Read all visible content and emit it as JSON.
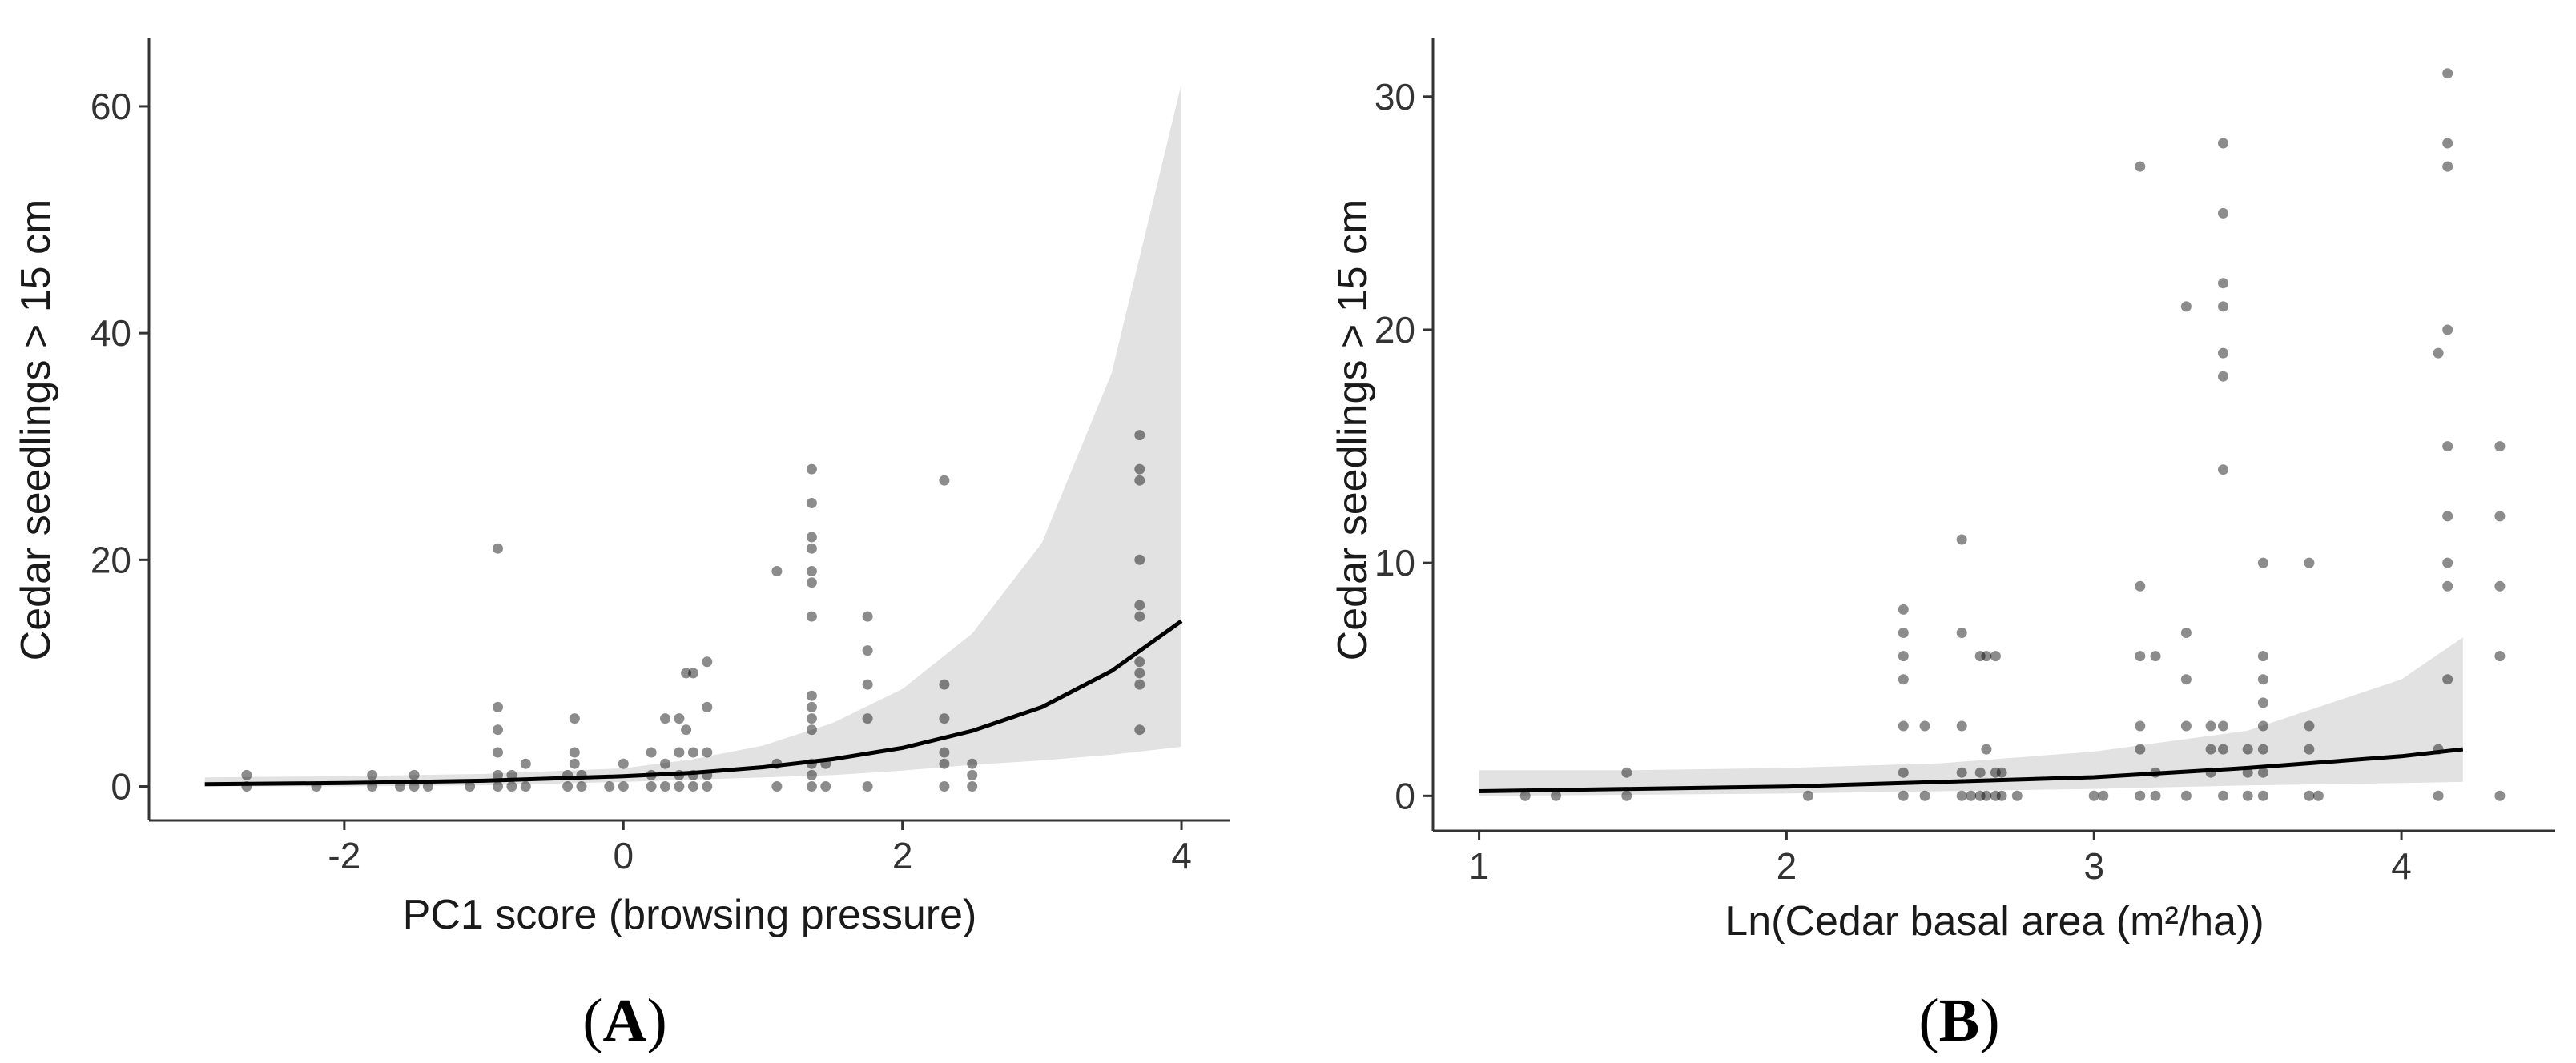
{
  "chart_data": [
    {
      "type": "scatter",
      "panel": "A",
      "panel_label": {
        "open": "(",
        "letter": "A",
        "close": ")"
      },
      "xlabel": "PC1 score (browsing pressure)",
      "ylabel": "Cedar seedlings > 15 cm",
      "xlim": [
        -3.4,
        4.35
      ],
      "ylim": [
        -3,
        66
      ],
      "xticks": [
        -2,
        0,
        2,
        4
      ],
      "yticks": [
        0,
        20,
        40,
        60
      ],
      "grid": false,
      "colors": {
        "points": "#000000",
        "ribbon": "#e2e2e2",
        "line": "#000000"
      },
      "fit": {
        "x": [
          -3.0,
          -2.0,
          -1.0,
          0.0,
          0.5,
          1.0,
          1.5,
          2.0,
          2.5,
          3.0,
          3.5,
          4.0
        ],
        "y": [
          0.2,
          0.3,
          0.5,
          0.9,
          1.2,
          1.7,
          2.4,
          3.4,
          4.9,
          7.0,
          10.2,
          14.6
        ],
        "lower": [
          0.0,
          0.0,
          0.1,
          0.4,
          0.6,
          0.8,
          1.0,
          1.4,
          1.9,
          2.3,
          2.8,
          3.5
        ],
        "upper": [
          0.8,
          0.9,
          1.1,
          1.6,
          2.4,
          3.6,
          5.6,
          8.6,
          13.5,
          21.5,
          36.5,
          62.0
        ]
      },
      "points": [
        [
          -2.7,
          1
        ],
        [
          -2.7,
          0
        ],
        [
          -2.2,
          0
        ],
        [
          -1.8,
          1
        ],
        [
          -1.8,
          0
        ],
        [
          -1.6,
          0
        ],
        [
          -1.5,
          1
        ],
        [
          -1.5,
          0
        ],
        [
          -1.4,
          0
        ],
        [
          -1.1,
          0
        ],
        [
          -0.9,
          21
        ],
        [
          -0.9,
          7
        ],
        [
          -0.9,
          5
        ],
        [
          -0.9,
          3
        ],
        [
          -0.9,
          1
        ],
        [
          -0.9,
          0
        ],
        [
          -0.8,
          1
        ],
        [
          -0.8,
          0
        ],
        [
          -0.7,
          2
        ],
        [
          -0.7,
          0
        ],
        [
          -0.4,
          1
        ],
        [
          -0.4,
          0
        ],
        [
          -0.35,
          6
        ],
        [
          -0.35,
          3
        ],
        [
          -0.35,
          2
        ],
        [
          -0.3,
          1
        ],
        [
          -0.3,
          0
        ],
        [
          -0.1,
          0
        ],
        [
          0.0,
          2
        ],
        [
          0.0,
          0
        ],
        [
          0.2,
          3
        ],
        [
          0.2,
          1
        ],
        [
          0.2,
          0
        ],
        [
          0.3,
          6
        ],
        [
          0.3,
          2
        ],
        [
          0.3,
          0
        ],
        [
          0.4,
          6
        ],
        [
          0.4,
          3
        ],
        [
          0.4,
          1
        ],
        [
          0.4,
          0
        ],
        [
          0.45,
          10
        ],
        [
          0.45,
          5
        ],
        [
          0.5,
          10
        ],
        [
          0.5,
          3
        ],
        [
          0.5,
          1
        ],
        [
          0.5,
          0
        ],
        [
          0.6,
          11
        ],
        [
          0.6,
          7
        ],
        [
          0.6,
          3
        ],
        [
          0.6,
          1
        ],
        [
          0.6,
          0
        ],
        [
          1.1,
          19
        ],
        [
          1.1,
          2
        ],
        [
          1.1,
          0
        ],
        [
          1.35,
          28
        ],
        [
          1.35,
          25
        ],
        [
          1.35,
          22
        ],
        [
          1.35,
          21
        ],
        [
          1.35,
          19
        ],
        [
          1.35,
          18
        ],
        [
          1.35,
          15
        ],
        [
          1.35,
          8
        ],
        [
          1.35,
          7
        ],
        [
          1.35,
          6
        ],
        [
          1.35,
          5
        ],
        [
          1.35,
          2
        ],
        [
          1.35,
          1
        ],
        [
          1.35,
          0
        ],
        [
          1.45,
          2
        ],
        [
          1.45,
          0
        ],
        [
          1.75,
          15
        ],
        [
          1.75,
          12
        ],
        [
          1.75,
          9
        ],
        [
          1.75,
          6
        ],
        [
          1.75,
          0
        ],
        [
          2.3,
          27
        ],
        [
          2.3,
          9
        ],
        [
          2.3,
          6
        ],
        [
          2.3,
          3
        ],
        [
          2.3,
          2
        ],
        [
          2.3,
          0
        ],
        [
          2.5,
          2
        ],
        [
          2.5,
          1
        ],
        [
          2.5,
          0
        ],
        [
          3.7,
          31
        ],
        [
          3.7,
          28
        ],
        [
          3.7,
          27
        ],
        [
          3.7,
          20
        ],
        [
          3.7,
          16
        ],
        [
          3.7,
          15
        ],
        [
          3.7,
          11
        ],
        [
          3.7,
          10
        ],
        [
          3.7,
          9
        ],
        [
          3.7,
          5
        ]
      ]
    },
    {
      "type": "scatter",
      "panel": "B",
      "panel_label": {
        "open": "(",
        "letter": "B",
        "close": ")"
      },
      "xlabel": "Ln(Cedar basal area (m²/ha))",
      "ylabel": "Cedar seedlings > 15 cm",
      "xlim": [
        0.85,
        4.5
      ],
      "ylim": [
        -1.5,
        32.5
      ],
      "xticks": [
        1,
        2,
        3,
        4
      ],
      "yticks": [
        0,
        10,
        20,
        30
      ],
      "grid": false,
      "colors": {
        "points": "#000000",
        "ribbon": "#e2e2e2",
        "line": "#000000"
      },
      "fit": {
        "x": [
          1.0,
          1.5,
          2.0,
          2.5,
          3.0,
          3.5,
          4.0,
          4.2
        ],
        "y": [
          0.2,
          0.3,
          0.4,
          0.6,
          0.8,
          1.2,
          1.7,
          2.0
        ],
        "lower": [
          0.0,
          0.05,
          0.1,
          0.2,
          0.3,
          0.45,
          0.55,
          0.6
        ],
        "upper": [
          1.1,
          1.1,
          1.2,
          1.4,
          1.9,
          2.8,
          5.0,
          6.8
        ]
      },
      "points": [
        [
          1.15,
          0
        ],
        [
          1.25,
          0
        ],
        [
          1.48,
          1
        ],
        [
          1.48,
          0
        ],
        [
          2.07,
          0
        ],
        [
          2.38,
          8
        ],
        [
          2.38,
          7
        ],
        [
          2.38,
          6
        ],
        [
          2.38,
          5
        ],
        [
          2.38,
          3
        ],
        [
          2.38,
          1
        ],
        [
          2.38,
          0
        ],
        [
          2.45,
          3
        ],
        [
          2.45,
          0
        ],
        [
          2.57,
          11
        ],
        [
          2.57,
          7
        ],
        [
          2.57,
          3
        ],
        [
          2.57,
          1
        ],
        [
          2.57,
          0
        ],
        [
          2.6,
          0
        ],
        [
          2.63,
          6
        ],
        [
          2.63,
          1
        ],
        [
          2.63,
          0
        ],
        [
          2.65,
          6
        ],
        [
          2.65,
          2
        ],
        [
          2.65,
          0
        ],
        [
          2.68,
          6
        ],
        [
          2.68,
          1
        ],
        [
          2.68,
          0
        ],
        [
          2.7,
          1
        ],
        [
          2.7,
          0
        ],
        [
          2.75,
          0
        ],
        [
          3.0,
          0
        ],
        [
          3.03,
          0
        ],
        [
          3.15,
          27
        ],
        [
          3.15,
          9
        ],
        [
          3.15,
          6
        ],
        [
          3.15,
          3
        ],
        [
          3.15,
          2
        ],
        [
          3.15,
          0
        ],
        [
          3.2,
          6
        ],
        [
          3.2,
          1
        ],
        [
          3.2,
          0
        ],
        [
          3.3,
          21
        ],
        [
          3.3,
          7
        ],
        [
          3.3,
          5
        ],
        [
          3.3,
          3
        ],
        [
          3.3,
          0
        ],
        [
          3.38,
          3
        ],
        [
          3.38,
          2
        ],
        [
          3.38,
          1
        ],
        [
          3.42,
          28
        ],
        [
          3.42,
          25
        ],
        [
          3.42,
          22
        ],
        [
          3.42,
          21
        ],
        [
          3.42,
          19
        ],
        [
          3.42,
          18
        ],
        [
          3.42,
          14
        ],
        [
          3.42,
          3
        ],
        [
          3.42,
          2
        ],
        [
          3.42,
          0
        ],
        [
          3.5,
          2
        ],
        [
          3.5,
          1
        ],
        [
          3.5,
          0
        ],
        [
          3.55,
          10
        ],
        [
          3.55,
          6
        ],
        [
          3.55,
          5
        ],
        [
          3.55,
          4
        ],
        [
          3.55,
          3
        ],
        [
          3.55,
          2
        ],
        [
          3.55,
          1
        ],
        [
          3.55,
          0
        ],
        [
          3.7,
          10
        ],
        [
          3.7,
          3
        ],
        [
          3.7,
          2
        ],
        [
          3.7,
          0
        ],
        [
          3.73,
          0
        ],
        [
          4.12,
          19
        ],
        [
          4.12,
          2
        ],
        [
          4.12,
          0
        ],
        [
          4.15,
          31
        ],
        [
          4.15,
          28
        ],
        [
          4.15,
          27
        ],
        [
          4.15,
          20
        ],
        [
          4.15,
          15
        ],
        [
          4.15,
          12
        ],
        [
          4.15,
          10
        ],
        [
          4.15,
          9
        ],
        [
          4.15,
          5
        ],
        [
          4.32,
          15
        ],
        [
          4.32,
          12
        ],
        [
          4.32,
          9
        ],
        [
          4.32,
          6
        ],
        [
          4.32,
          0
        ]
      ]
    }
  ]
}
